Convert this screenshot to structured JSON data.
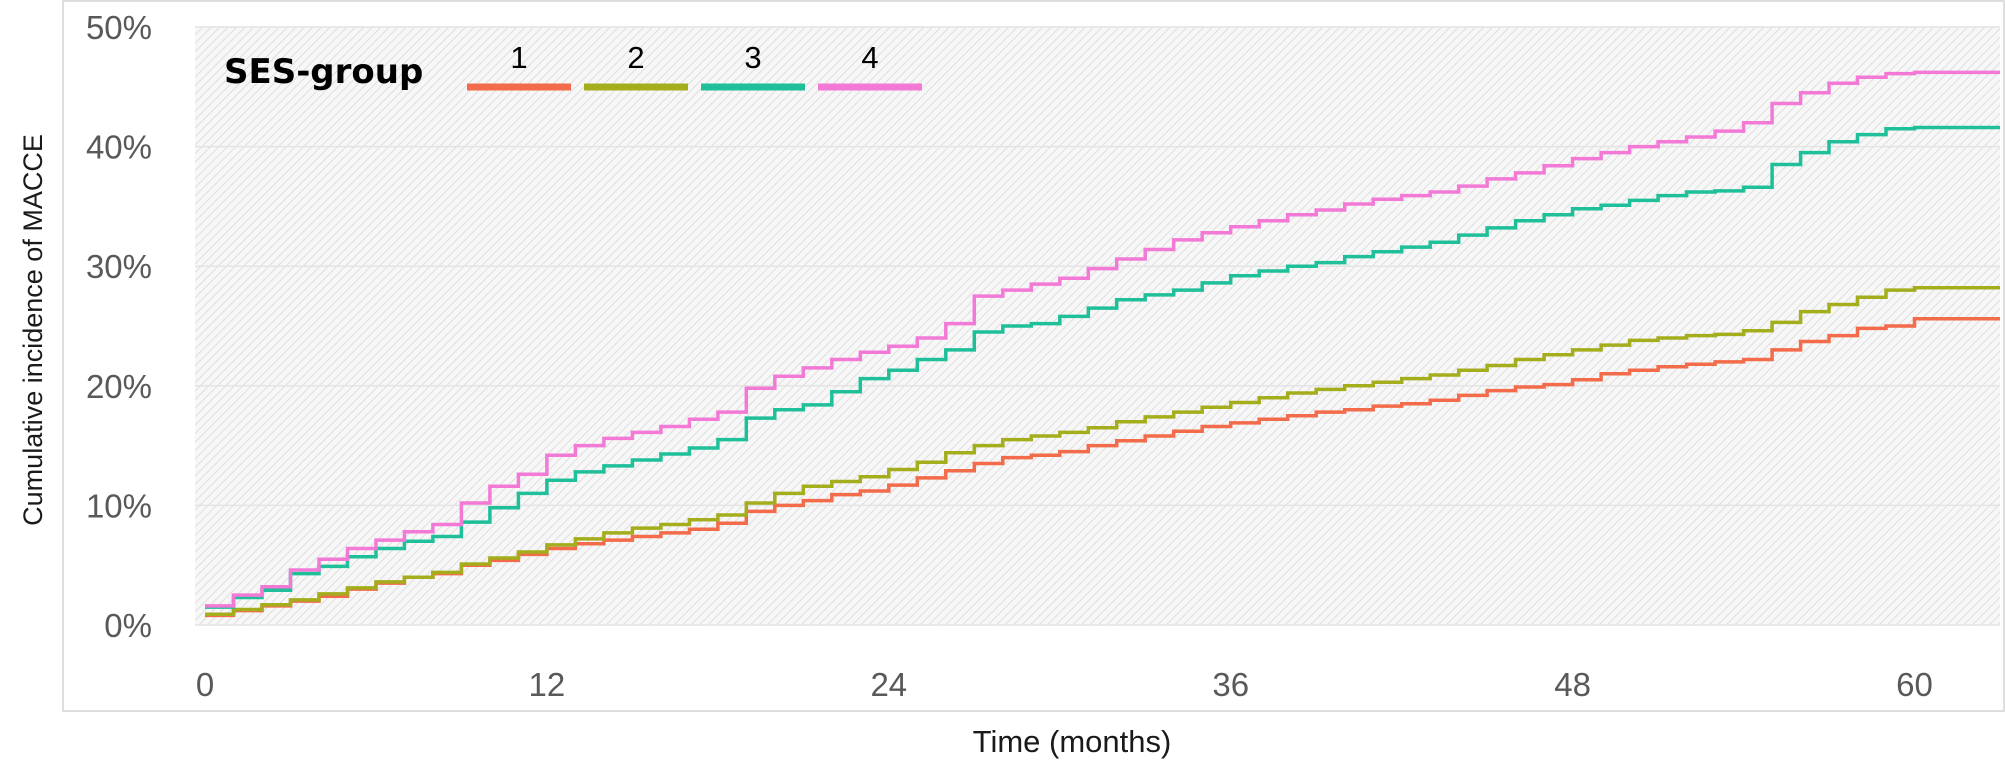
{
  "chart_data": {
    "type": "line",
    "step": true,
    "xlabel": "Time (months)",
    "ylabel": "Cumulative incidence of MACCE",
    "xlim": [
      0,
      63
    ],
    "ylim": [
      0,
      50
    ],
    "x_ticks": [
      0,
      12,
      24,
      36,
      48,
      60
    ],
    "x_tick_labels": [
      "0",
      "12",
      "24",
      "36",
      "48",
      "60"
    ],
    "y_ticks": [
      0,
      10,
      20,
      30,
      40,
      50
    ],
    "y_tick_labels": [
      "0%",
      "10%",
      "20%",
      "30%",
      "40%",
      "50%"
    ],
    "grid": true,
    "legend": {
      "title": "SES-group",
      "placement": "top-left"
    },
    "series": [
      {
        "name": "1",
        "color": "#f26b4a",
        "x": [
          0,
          1,
          2,
          3,
          4,
          5,
          6,
          7,
          8,
          9,
          10,
          11,
          12,
          13,
          14,
          15,
          16,
          17,
          18,
          19,
          20,
          21,
          22,
          23,
          24,
          25,
          26,
          27,
          28,
          29,
          30,
          31,
          32,
          33,
          34,
          35,
          36,
          37,
          38,
          39,
          40,
          41,
          42,
          43,
          44,
          45,
          46,
          47,
          48,
          49,
          50,
          51,
          52,
          53,
          54,
          55,
          56,
          57,
          58,
          59,
          60,
          63
        ],
        "y": [
          0.8,
          1.2,
          1.6,
          2.0,
          2.4,
          3.0,
          3.5,
          4.0,
          4.3,
          5.0,
          5.4,
          5.9,
          6.4,
          6.8,
          7.1,
          7.4,
          7.7,
          8.0,
          8.5,
          9.5,
          10.0,
          10.4,
          10.9,
          11.2,
          11.7,
          12.3,
          12.9,
          13.5,
          14.0,
          14.2,
          14.5,
          15.0,
          15.4,
          15.8,
          16.2,
          16.6,
          16.9,
          17.2,
          17.5,
          17.8,
          18.0,
          18.3,
          18.5,
          18.8,
          19.2,
          19.6,
          19.9,
          20.1,
          20.5,
          21.0,
          21.3,
          21.6,
          21.8,
          22.0,
          22.2,
          23.0,
          23.7,
          24.2,
          24.8,
          25.0,
          25.6,
          25.6
        ]
      },
      {
        "name": "2",
        "color": "#a4ad1c",
        "x": [
          0,
          1,
          2,
          3,
          4,
          5,
          6,
          7,
          8,
          9,
          10,
          11,
          12,
          13,
          14,
          15,
          16,
          17,
          18,
          19,
          20,
          21,
          22,
          23,
          24,
          25,
          26,
          27,
          28,
          29,
          30,
          31,
          32,
          33,
          34,
          35,
          36,
          37,
          38,
          39,
          40,
          41,
          42,
          43,
          44,
          45,
          46,
          47,
          48,
          49,
          50,
          51,
          52,
          53,
          54,
          55,
          56,
          57,
          58,
          59,
          60,
          63
        ],
        "y": [
          0.9,
          1.3,
          1.7,
          2.1,
          2.6,
          3.1,
          3.6,
          4.0,
          4.4,
          5.1,
          5.6,
          6.1,
          6.7,
          7.2,
          7.7,
          8.1,
          8.4,
          8.8,
          9.2,
          10.2,
          11.0,
          11.6,
          12.0,
          12.4,
          13.0,
          13.6,
          14.4,
          15.0,
          15.5,
          15.8,
          16.1,
          16.5,
          17.0,
          17.4,
          17.8,
          18.2,
          18.6,
          19.0,
          19.4,
          19.7,
          20.0,
          20.3,
          20.6,
          20.9,
          21.3,
          21.7,
          22.2,
          22.6,
          23.0,
          23.4,
          23.8,
          24.0,
          24.2,
          24.3,
          24.6,
          25.3,
          26.2,
          26.8,
          27.4,
          28.0,
          28.2,
          28.2
        ]
      },
      {
        "name": "3",
        "color": "#1fbf9a",
        "x": [
          0,
          1,
          2,
          3,
          4,
          5,
          6,
          7,
          8,
          9,
          10,
          11,
          12,
          13,
          14,
          15,
          16,
          17,
          18,
          19,
          20,
          21,
          22,
          23,
          24,
          25,
          26,
          27,
          28,
          29,
          30,
          31,
          32,
          33,
          34,
          35,
          36,
          37,
          38,
          39,
          40,
          41,
          42,
          43,
          44,
          45,
          46,
          47,
          48,
          49,
          50,
          51,
          52,
          53,
          54,
          55,
          56,
          57,
          58,
          59,
          60,
          63
        ],
        "y": [
          1.5,
          2.3,
          2.9,
          4.3,
          4.9,
          5.7,
          6.4,
          7.0,
          7.4,
          8.6,
          9.8,
          11.0,
          12.1,
          12.8,
          13.3,
          13.8,
          14.3,
          14.8,
          15.5,
          17.3,
          18.0,
          18.4,
          19.5,
          20.6,
          21.3,
          22.2,
          23.0,
          24.5,
          25.0,
          25.2,
          25.8,
          26.5,
          27.2,
          27.6,
          28.0,
          28.6,
          29.2,
          29.6,
          30.0,
          30.3,
          30.8,
          31.2,
          31.6,
          32.0,
          32.6,
          33.2,
          33.8,
          34.3,
          34.8,
          35.1,
          35.5,
          35.9,
          36.2,
          36.3,
          36.6,
          38.5,
          39.5,
          40.4,
          41.0,
          41.5,
          41.6,
          41.6
        ]
      },
      {
        "name": "4",
        "color": "#f27ad6",
        "x": [
          0,
          1,
          2,
          3,
          4,
          5,
          6,
          7,
          8,
          9,
          10,
          11,
          12,
          13,
          14,
          15,
          16,
          17,
          18,
          19,
          20,
          21,
          22,
          23,
          24,
          25,
          26,
          27,
          28,
          29,
          30,
          31,
          32,
          33,
          34,
          35,
          36,
          37,
          38,
          39,
          40,
          41,
          42,
          43,
          44,
          45,
          46,
          47,
          48,
          49,
          50,
          51,
          52,
          53,
          54,
          55,
          56,
          57,
          58,
          59,
          60,
          63
        ],
        "y": [
          1.6,
          2.5,
          3.2,
          4.6,
          5.5,
          6.4,
          7.1,
          7.8,
          8.4,
          10.2,
          11.6,
          12.6,
          14.2,
          15.0,
          15.6,
          16.1,
          16.6,
          17.2,
          17.8,
          19.8,
          20.8,
          21.5,
          22.2,
          22.8,
          23.3,
          24.0,
          25.2,
          27.5,
          28.0,
          28.5,
          29.0,
          29.8,
          30.6,
          31.4,
          32.2,
          32.8,
          33.3,
          33.8,
          34.3,
          34.7,
          35.2,
          35.6,
          35.9,
          36.2,
          36.7,
          37.3,
          37.8,
          38.4,
          39.0,
          39.5,
          40.0,
          40.4,
          40.8,
          41.3,
          42.0,
          43.6,
          44.5,
          45.3,
          45.8,
          46.1,
          46.2,
          46.2
        ]
      }
    ]
  }
}
